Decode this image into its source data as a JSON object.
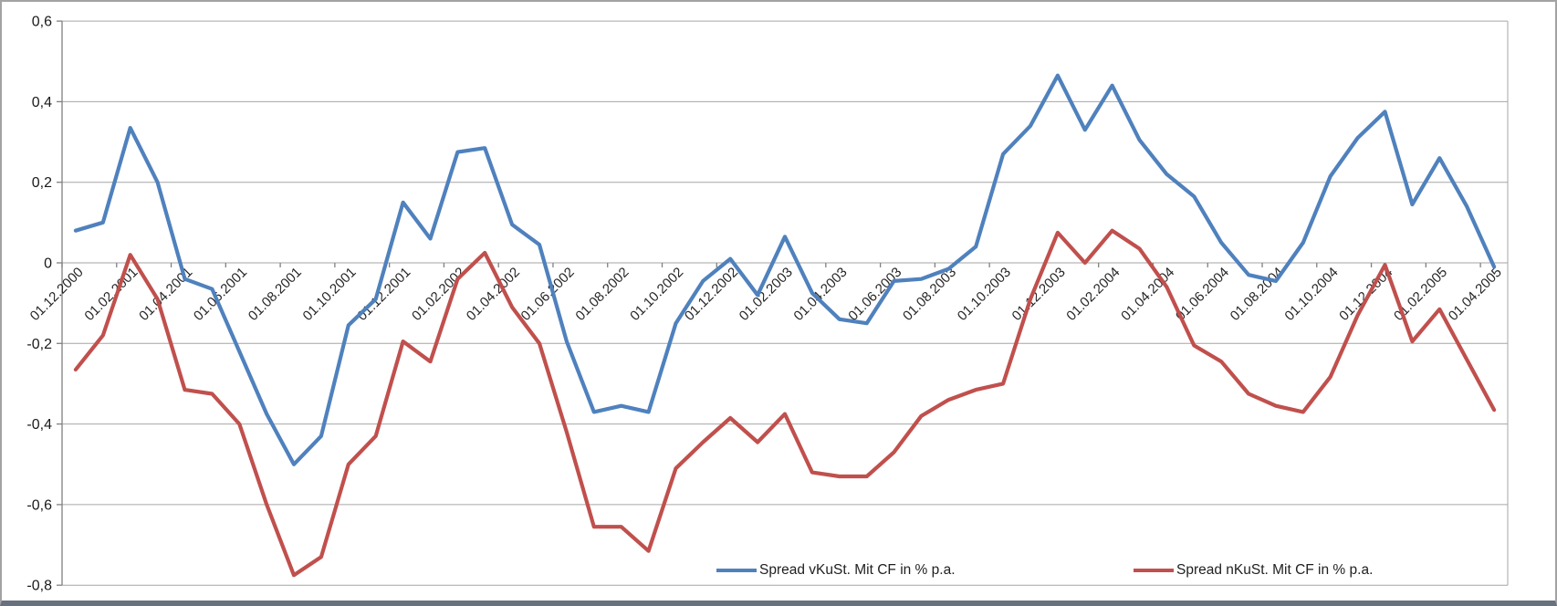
{
  "chart_data": {
    "type": "line",
    "title": "",
    "xlabel": "",
    "ylabel": "",
    "ylim": [
      -0.8,
      0.6
    ],
    "grid": true,
    "legend_position": "bottom",
    "y_ticks": [
      {
        "label": "0,6",
        "value": 0.6
      },
      {
        "label": "0,4",
        "value": 0.4
      },
      {
        "label": "0,2",
        "value": 0.2
      },
      {
        "label": "0",
        "value": 0.0
      },
      {
        "label": "-0,2",
        "value": -0.2
      },
      {
        "label": "-0,4",
        "value": -0.4
      },
      {
        "label": "-0,6",
        "value": -0.6
      },
      {
        "label": "-0,8",
        "value": -0.8
      }
    ],
    "categories": [
      "01.12.2000",
      "01.01.2001",
      "01.02.2001",
      "01.03.2001",
      "01.04.2001",
      "01.05.2001",
      "01.06.2001",
      "01.07.2001",
      "01.08.2001",
      "01.09.2001",
      "01.10.2001",
      "01.11.2001",
      "01.12.2001",
      "01.01.2002",
      "01.02.2002",
      "01.03.2002",
      "01.04.2002",
      "01.05.2002",
      "01.06.2002",
      "01.07.2002",
      "01.08.2002",
      "01.09.2002",
      "01.10.2002",
      "01.11.2002",
      "01.12.2002",
      "01.01.2003",
      "01.02.2003",
      "01.03.2003",
      "01.04.2003",
      "01.05.2003",
      "01.06.2003",
      "01.07.2003",
      "01.08.2003",
      "01.09.2003",
      "01.10.2003",
      "01.11.2003",
      "01.12.2003",
      "01.01.2004",
      "01.02.2004",
      "01.03.2004",
      "01.04.2004",
      "01.05.2004",
      "01.06.2004",
      "01.07.2004",
      "01.08.2004",
      "01.09.2004",
      "01.10.2004",
      "01.11.2004",
      "01.12.2004",
      "01.01.2005",
      "01.02.2005",
      "01.03.2005",
      "01.04.2005"
    ],
    "x_tick_labels": [
      "01.12.2000",
      "01.02.2001",
      "01.04.2001",
      "01.06.2001",
      "01.08.2001",
      "01.10.2001",
      "01.12.2001",
      "01.02.2002",
      "01.04.2002",
      "01.06.2002",
      "01.08.2002",
      "01.10.2002",
      "01.12.2002",
      "01.02.2003",
      "01.04.2003",
      "01.06.2003",
      "01.08.2003",
      "01.10.2003",
      "01.12.2003",
      "01.02.2004",
      "01.04.2004",
      "01.06.2004",
      "01.08.2004",
      "01.10.2004",
      "01.12.2004",
      "01.02.2005",
      "01.04.2005"
    ],
    "series": [
      {
        "name": "Spread vKuSt. Mit CF in % p.a.",
        "color": "#4F81BD",
        "values": [
          0.08,
          0.1,
          0.335,
          0.2,
          -0.04,
          -0.065,
          -0.22,
          -0.375,
          -0.5,
          -0.43,
          -0.155,
          -0.09,
          0.15,
          0.06,
          0.275,
          0.285,
          0.095,
          0.045,
          -0.195,
          -0.37,
          -0.355,
          -0.37,
          -0.15,
          -0.045,
          0.01,
          -0.08,
          0.065,
          -0.075,
          -0.14,
          -0.15,
          -0.045,
          -0.04,
          -0.015,
          0.04,
          0.27,
          0.34,
          0.465,
          0.33,
          0.44,
          0.305,
          0.22,
          0.165,
          0.05,
          -0.03,
          -0.045,
          0.05,
          0.215,
          0.31,
          0.375,
          0.145,
          0.26,
          0.14,
          -0.01
        ]
      },
      {
        "name": "Spread nKuSt. Mit CF in % p.a.",
        "color": "#C0504D",
        "values": [
          -0.265,
          -0.18,
          0.02,
          -0.09,
          -0.315,
          -0.325,
          -0.4,
          -0.6,
          -0.775,
          -0.73,
          -0.5,
          -0.43,
          -0.195,
          -0.245,
          -0.04,
          0.025,
          -0.11,
          -0.2,
          -0.42,
          -0.655,
          -0.655,
          -0.715,
          -0.51,
          -0.445,
          -0.385,
          -0.445,
          -0.375,
          -0.52,
          -0.53,
          -0.53,
          -0.47,
          -0.38,
          -0.34,
          -0.315,
          -0.3,
          -0.09,
          0.075,
          0.0,
          0.08,
          0.035,
          -0.06,
          -0.205,
          -0.245,
          -0.325,
          -0.355,
          -0.37,
          -0.283,
          -0.13,
          -0.005,
          -0.195,
          -0.115,
          -0.24,
          -0.365
        ]
      }
    ],
    "colors": {
      "gridline": "#A6A6A6",
      "axis": "#808080",
      "tick_label": "#262626"
    }
  }
}
